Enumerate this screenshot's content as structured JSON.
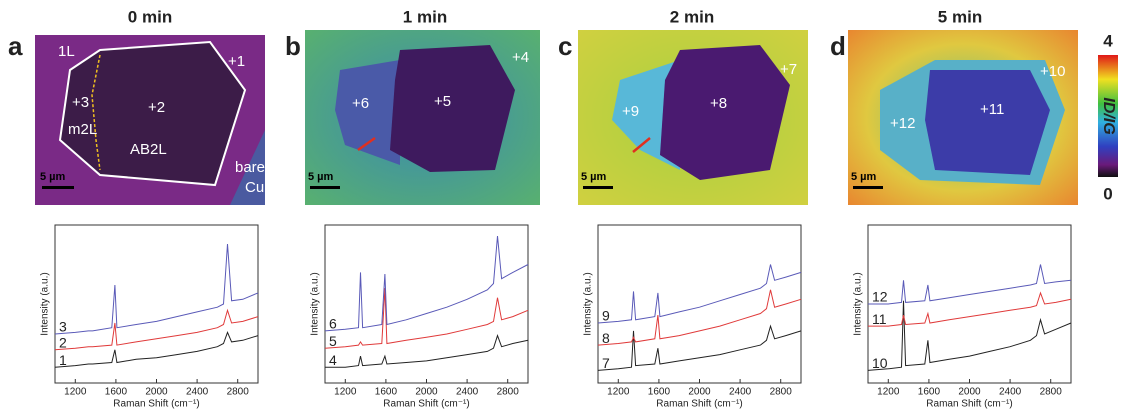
{
  "panels": [
    {
      "label": "a",
      "title": "0 min",
      "annotations": [
        "1L",
        "+1",
        "+3",
        "+2",
        "m2L",
        "AB2L",
        "bare",
        "Cu"
      ],
      "scale_bar": "5 µm"
    },
    {
      "label": "b",
      "title": "1 min",
      "annotations": [
        "+4",
        "+6",
        "+5"
      ],
      "scale_bar": "5 µm"
    },
    {
      "label": "c",
      "title": "2 min",
      "annotations": [
        "+7",
        "+9",
        "+8"
      ],
      "scale_bar": "5 µm"
    },
    {
      "label": "d",
      "title": "5 min",
      "annotations": [
        "+10",
        "+12",
        "+11"
      ],
      "scale_bar": "5 µm"
    }
  ],
  "colorbar": {
    "label": "ID/IG",
    "max": 4,
    "min": 0
  },
  "chart_data": [
    {
      "type": "line",
      "x_label": "Raman Shift (cm⁻¹)",
      "y_label": "Intensity (a.u.)",
      "x": [
        1000,
        1200,
        1330,
        1350,
        1370,
        1560,
        1590,
        1610,
        1800,
        2000,
        2200,
        2400,
        2600,
        2660,
        2700,
        2740,
        2850,
        3000
      ],
      "xlim": [
        1000,
        3000
      ],
      "xticks": [
        1200,
        1600,
        2000,
        2400,
        2800
      ],
      "ylim": [
        0,
        10
      ],
      "series": [
        {
          "name": "1",
          "color": "#222222",
          "values": [
            1.0,
            1.1,
            1.2,
            1.2,
            1.2,
            1.3,
            2.1,
            1.3,
            1.5,
            1.6,
            1.8,
            2.0,
            2.3,
            2.5,
            3.2,
            2.6,
            2.7,
            3.0
          ]
        },
        {
          "name": "2",
          "color": "#e03a3a",
          "values": [
            2.1,
            2.2,
            2.3,
            2.3,
            2.3,
            2.4,
            3.8,
            2.4,
            2.6,
            2.8,
            3.0,
            3.2,
            3.5,
            3.7,
            4.6,
            3.8,
            3.9,
            4.2
          ]
        },
        {
          "name": "3",
          "color": "#5a5ab8",
          "values": [
            3.1,
            3.2,
            3.3,
            3.3,
            3.3,
            3.5,
            6.2,
            3.5,
            3.7,
            3.9,
            4.2,
            4.5,
            4.8,
            5.0,
            8.8,
            5.2,
            5.3,
            5.7
          ]
        }
      ]
    },
    {
      "type": "line",
      "x_label": "Raman Shift (cm⁻¹)",
      "y_label": "Intensity (a.u.)",
      "x": [
        1000,
        1200,
        1330,
        1350,
        1370,
        1560,
        1590,
        1610,
        1800,
        2000,
        2200,
        2400,
        2600,
        2660,
        2700,
        2740,
        2850,
        3000
      ],
      "xlim": [
        1000,
        3000
      ],
      "xticks": [
        1200,
        1600,
        2000,
        2400,
        2800
      ],
      "ylim": [
        0,
        10
      ],
      "series": [
        {
          "name": "4",
          "color": "#222222",
          "values": [
            1.0,
            1.0,
            1.1,
            1.7,
            1.1,
            1.2,
            1.7,
            1.2,
            1.3,
            1.4,
            1.6,
            1.8,
            2.0,
            2.2,
            3.0,
            2.3,
            2.5,
            2.7
          ]
        },
        {
          "name": "5",
          "color": "#e03a3a",
          "values": [
            2.2,
            2.3,
            2.4,
            2.6,
            2.4,
            2.5,
            6.0,
            2.5,
            2.7,
            2.9,
            3.1,
            3.4,
            3.7,
            3.9,
            5.4,
            4.0,
            4.2,
            4.6
          ]
        },
        {
          "name": "6",
          "color": "#5a5ab8",
          "values": [
            3.3,
            3.4,
            3.5,
            7.0,
            3.5,
            3.7,
            6.9,
            3.7,
            4.0,
            4.4,
            4.8,
            5.3,
            5.9,
            6.3,
            9.3,
            6.6,
            7.0,
            7.5
          ]
        }
      ]
    },
    {
      "type": "line",
      "x_label": "Raman Shift (cm⁻¹)",
      "y_label": "Intensity (a.u.)",
      "x": [
        1000,
        1200,
        1330,
        1350,
        1370,
        1560,
        1590,
        1610,
        1800,
        2000,
        2200,
        2400,
        2600,
        2660,
        2700,
        2740,
        2850,
        3000
      ],
      "xlim": [
        1000,
        3000
      ],
      "xticks": [
        1200,
        1600,
        2000,
        2400,
        2800
      ],
      "ylim": [
        0,
        10
      ],
      "series": [
        {
          "name": "7",
          "color": "#222222",
          "values": [
            0.8,
            0.9,
            1.0,
            3.3,
            1.1,
            1.2,
            2.2,
            1.2,
            1.4,
            1.6,
            1.8,
            2.1,
            2.4,
            2.7,
            3.6,
            2.8,
            3.0,
            3.3
          ]
        },
        {
          "name": "8",
          "color": "#e03a3a",
          "values": [
            2.4,
            2.5,
            2.6,
            2.9,
            2.6,
            2.8,
            4.3,
            2.8,
            3.0,
            3.3,
            3.6,
            4.0,
            4.4,
            4.7,
            5.9,
            4.8,
            5.0,
            5.3
          ]
        },
        {
          "name": "9",
          "color": "#5a5ab8",
          "values": [
            3.8,
            3.9,
            4.0,
            5.8,
            4.0,
            4.2,
            5.7,
            4.2,
            4.5,
            4.8,
            5.2,
            5.6,
            6.0,
            6.3,
            7.5,
            6.5,
            6.7,
            7.0
          ]
        }
      ]
    },
    {
      "type": "line",
      "x_label": "Raman Shift (cm⁻¹)",
      "y_label": "Intensity (a.u.)",
      "x": [
        1000,
        1200,
        1330,
        1350,
        1370,
        1560,
        1590,
        1610,
        1800,
        2000,
        2200,
        2400,
        2600,
        2660,
        2700,
        2740,
        2850,
        3000
      ],
      "xlim": [
        1000,
        3000
      ],
      "xticks": [
        1200,
        1600,
        2000,
        2400,
        2800
      ],
      "ylim": [
        0,
        10
      ],
      "series": [
        {
          "name": "10",
          "color": "#222222",
          "values": [
            0.8,
            0.9,
            1.0,
            5.2,
            1.1,
            1.2,
            2.7,
            1.3,
            1.5,
            1.7,
            2.0,
            2.3,
            2.7,
            3.0,
            4.0,
            3.1,
            3.4,
            3.8
          ]
        },
        {
          "name": "11",
          "color": "#e03a3a",
          "values": [
            3.6,
            3.6,
            3.7,
            4.3,
            3.7,
            3.8,
            4.4,
            3.8,
            4.0,
            4.2,
            4.4,
            4.6,
            4.8,
            4.9,
            5.7,
            5.0,
            5.1,
            5.3
          ]
        },
        {
          "name": "12",
          "color": "#5a5ab8",
          "values": [
            5.0,
            5.0,
            5.1,
            6.5,
            5.1,
            5.2,
            6.2,
            5.2,
            5.4,
            5.6,
            5.8,
            6.0,
            6.2,
            6.3,
            7.5,
            6.3,
            6.4,
            6.5
          ]
        }
      ]
    }
  ]
}
